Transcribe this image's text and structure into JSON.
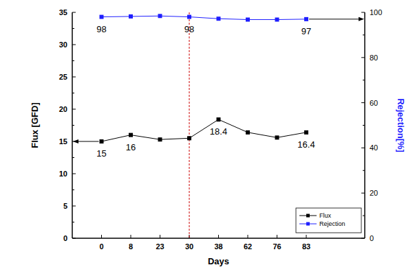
{
  "chart_data": {
    "type": "line",
    "x_label": "Days",
    "y_label": "Flux [GFD]",
    "y2_label": "Rejection[%]",
    "categories": [
      null,
      0,
      8,
      23,
      30,
      38,
      62,
      76,
      83,
      null,
      null
    ],
    "series": [
      {
        "name": "Flux",
        "color": "#000000",
        "marker": "square",
        "line_style": "solid",
        "values": [
          null,
          15,
          16,
          15.3,
          15.5,
          18.4,
          16.4,
          15.6,
          16.4,
          null,
          null
        ],
        "value_labels": [
          null,
          "15",
          "16",
          null,
          null,
          "18.4",
          null,
          null,
          "16.4",
          null,
          null
        ]
      },
      {
        "name": "Rejection",
        "color": "#1f1fff",
        "marker": "square",
        "line_style": "solid",
        "axis": "y2",
        "values": [
          null,
          98,
          98.2,
          98.4,
          98,
          97.2,
          96.8,
          96.8,
          97,
          null,
          null
        ],
        "value_labels": [
          null,
          "98",
          null,
          null,
          "98",
          null,
          null,
          null,
          "97",
          null,
          null
        ]
      }
    ],
    "ylim": [
      0,
      35
    ],
    "yticks": [
      0,
      5,
      10,
      15,
      20,
      25,
      30,
      35
    ],
    "y2lim": [
      0,
      100
    ],
    "y2ticks": [
      0,
      20,
      40,
      60,
      80,
      100
    ],
    "annotations": [
      {
        "type": "vline",
        "x": 30,
        "color": "#cc0000",
        "line_style": "dashed"
      }
    ],
    "legend": "lower right",
    "grid": false
  }
}
